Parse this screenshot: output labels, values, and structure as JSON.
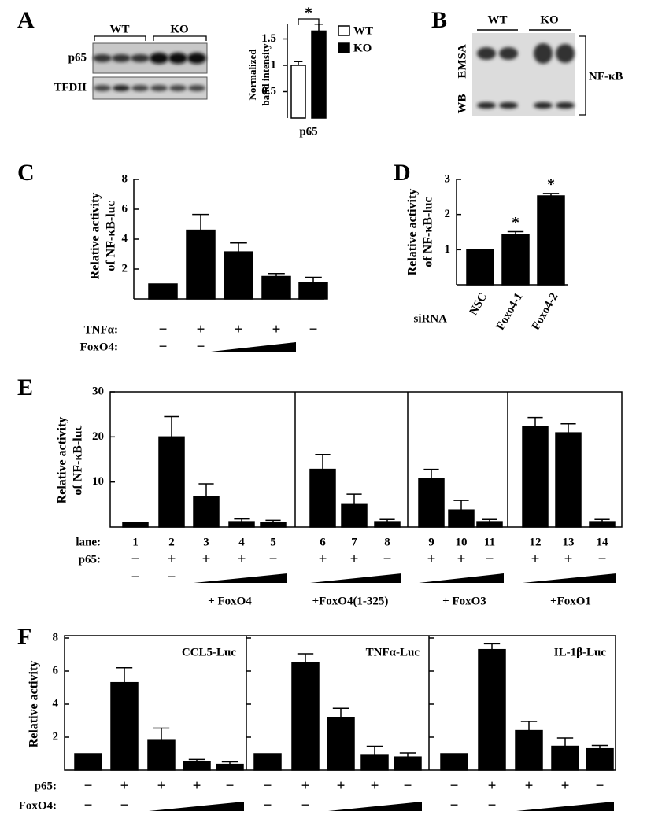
{
  "panel_labels": [
    "A",
    "B",
    "C",
    "D",
    "E",
    "F"
  ],
  "blot_a": {
    "groups": [
      "WT",
      "KO"
    ],
    "rows": [
      "p65",
      "TFDII"
    ]
  },
  "blot_b": {
    "groups": [
      "WT",
      "KO"
    ],
    "rows": [
      "EMSA",
      "WB"
    ],
    "bracket_label": "NF-κB"
  },
  "chart_data": [
    {
      "type": "bar",
      "y_label": [
        "Normalized",
        "band intensity"
      ],
      "categories": [
        "p65"
      ],
      "ylim": [
        0,
        1.8
      ],
      "yticks": [
        0.5,
        1,
        1.5
      ],
      "annotation": "*",
      "series": [
        {
          "name": "WT",
          "color": "#ffffff",
          "values": [
            1.0
          ],
          "errors": [
            0.07
          ]
        },
        {
          "name": "KO",
          "color": "#000000",
          "values": [
            1.65
          ],
          "errors": [
            0.13
          ]
        }
      ]
    },
    {
      "type": "bar",
      "y_label": [
        "Relative activity",
        "of NF-κB-luc"
      ],
      "ylim": [
        0,
        8
      ],
      "yticks": [
        2,
        4,
        6,
        8
      ],
      "color": "#000000",
      "values": [
        1,
        4.6,
        3.15,
        1.5,
        1.1
      ],
      "errors": [
        null,
        1.05,
        0.6,
        0.2,
        0.35
      ],
      "rows": [
        {
          "label": "TNFα:",
          "signs": [
            "−",
            "+",
            "+",
            "+",
            "−"
          ]
        },
        {
          "label": "FoxO4:",
          "signs": [
            "−",
            "−"
          ]
        }
      ]
    },
    {
      "type": "bar",
      "y_label": [
        "Relative activity",
        "of NF-κB-luc"
      ],
      "ylim": [
        0,
        3
      ],
      "yticks": [
        1,
        2,
        3
      ],
      "color": "#000000",
      "categories": [
        "NSC",
        "Foxo4-1",
        "Foxo4-2"
      ],
      "values": [
        1,
        1.43,
        2.53
      ],
      "errors": [
        null,
        0.08,
        0.07
      ],
      "markers": [
        null,
        "*",
        "*"
      ],
      "row_label": "siRNA"
    },
    {
      "type": "bar",
      "y_label": [
        "Relative activity",
        "of NF-κB-luc"
      ],
      "ylim": [
        0,
        30
      ],
      "yticks": [
        10,
        20,
        30
      ],
      "color": "#000000",
      "lane_label": "lane:",
      "categories": [
        "1",
        "2",
        "3",
        "4",
        "5",
        "6",
        "7",
        "8",
        "9",
        "10",
        "11",
        "12",
        "13",
        "14"
      ],
      "values": [
        1,
        20,
        6.8,
        1.2,
        1,
        12.8,
        5,
        1.2,
        10.8,
        3.8,
        1.2,
        22.3,
        20.9,
        1.2
      ],
      "errors": [
        null,
        4.5,
        2.8,
        0.6,
        0.5,
        3.3,
        2.3,
        0.5,
        2,
        2.1,
        0.5,
        2,
        2,
        0.5
      ],
      "rows": [
        {
          "label": "p65:",
          "signs": [
            "−",
            "+",
            "+",
            "+",
            "−",
            "+",
            "+",
            "−",
            "+",
            "+",
            "−",
            "+",
            "+",
            "−"
          ]
        },
        {
          "signs": [
            "−",
            "−"
          ]
        }
      ],
      "groups": [
        "+ FoxO4",
        "+FoxO4(1-325)",
        "+ FoxO3",
        "+FoxO1"
      ]
    },
    {
      "type": "bar",
      "y_label": [
        "Relative activity"
      ],
      "ylim": [
        0,
        8
      ],
      "yticks": [
        2,
        4,
        6,
        8
      ],
      "color": "#000000",
      "series": [
        {
          "name": "CCL5-Luc",
          "values": [
            1,
            5.3,
            1.8,
            0.5,
            0.35
          ],
          "errors": [
            null,
            0.9,
            0.75,
            0.15,
            0.15
          ]
        },
        {
          "name": "TNFα-Luc",
          "values": [
            1,
            6.5,
            3.2,
            0.9,
            0.8
          ],
          "errors": [
            null,
            0.55,
            0.55,
            0.55,
            0.25
          ]
        },
        {
          "name": "IL-1β-Luc",
          "values": [
            1,
            7.3,
            2.4,
            1.45,
            1.3
          ],
          "errors": [
            null,
            0.35,
            0.55,
            0.5,
            0.2
          ]
        }
      ],
      "rows": [
        {
          "label": "p65:",
          "signs": [
            "−",
            "+",
            "+",
            "+",
            "−",
            "−",
            "+",
            "+",
            "+",
            "−",
            "−",
            "+",
            "+",
            "+",
            "−"
          ]
        },
        {
          "label": "FoxO4:",
          "signs": [
            "−",
            "−",
            null,
            null,
            null,
            "−",
            "−",
            null,
            null,
            null,
            "−",
            "−",
            null,
            null,
            null
          ]
        }
      ]
    }
  ]
}
